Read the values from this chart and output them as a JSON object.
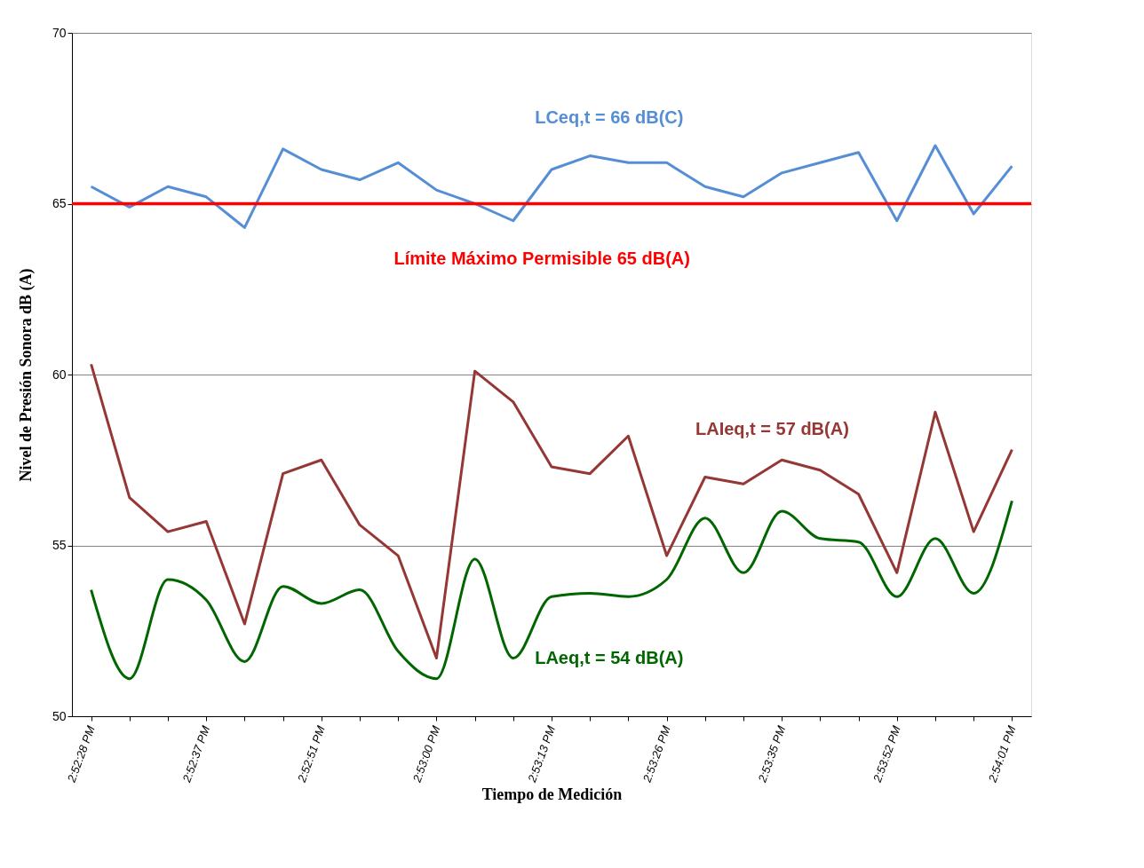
{
  "chart_data": {
    "type": "line",
    "xlabel": "Tiempo de Medición",
    "ylabel": "Nivel de Presión Sonora dB (A)",
    "categories": [
      "2:52:28 PM",
      null,
      null,
      "2:52:37 PM",
      null,
      null,
      "2:52:51 PM",
      null,
      null,
      "2:53:00 PM",
      null,
      null,
      "2:53:13 PM",
      null,
      null,
      "2:53:26 PM",
      null,
      null,
      "2:53:35 PM",
      null,
      null,
      "2:53:52 PM",
      null,
      null,
      "2:54:01 PM"
    ],
    "series": [
      {
        "name": "LCeq,t = 66 dB(C)",
        "color": "#558ed5",
        "values": [
          65.5,
          64.9,
          65.5,
          65.2,
          64.3,
          66.6,
          66.0,
          65.7,
          66.2,
          65.4,
          65.0,
          64.5,
          66.0,
          66.4,
          66.2,
          66.2,
          65.5,
          65.2,
          65.9,
          66.2,
          66.5,
          64.5,
          66.7,
          64.7,
          66.1
        ]
      },
      {
        "name": "LAIeq,t = 57 dB(A)",
        "color": "#953735",
        "values": [
          60.3,
          56.4,
          55.4,
          55.7,
          52.7,
          57.1,
          57.5,
          55.6,
          54.7,
          51.7,
          60.1,
          59.2,
          57.3,
          57.1,
          58.2,
          54.7,
          57.0,
          56.8,
          57.5,
          57.2,
          56.5,
          54.2,
          58.9,
          55.4,
          57.8
        ]
      },
      {
        "name": "LAeq,t = 54 dB(A)",
        "color": "#006600",
        "values": [
          53.7,
          51.1,
          54.0,
          53.4,
          51.6,
          53.8,
          53.3,
          53.7,
          51.9,
          51.1,
          54.6,
          51.7,
          53.5,
          53.6,
          53.5,
          54.0,
          55.8,
          54.2,
          56.0,
          55.2,
          55.1,
          53.5,
          55.2,
          53.6,
          56.3
        ]
      }
    ],
    "ref_lines": [
      {
        "axis": "y",
        "value": 65,
        "label": "Límite Máximo Permisible 65 dB(A)",
        "color": "#ff0000"
      }
    ],
    "ylim": [
      50,
      70
    ],
    "yticks": [
      50,
      55,
      60,
      65,
      70
    ],
    "grid": "y",
    "legend": false,
    "marker": "none",
    "line_style": "solid"
  }
}
